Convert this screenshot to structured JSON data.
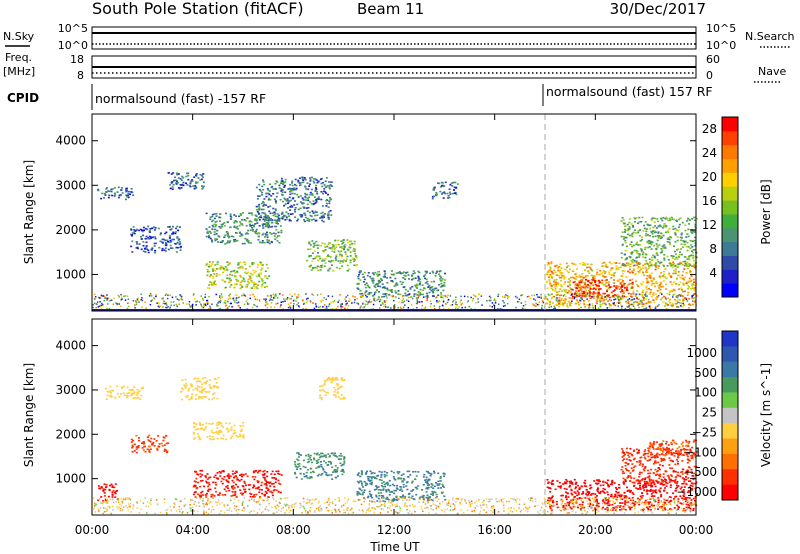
{
  "header": {
    "title": "South Pole Station (fitACF)",
    "beam": "Beam 11",
    "date": "30/Dec/2017"
  },
  "status_panels": {
    "nsky_label": "N.Sky",
    "nsearch_label": "N.Search",
    "freq_label_1": "Freq.",
    "freq_label_2": "[MHz]",
    "nave_label": "Nave",
    "cpid_label": "CPID",
    "noise_left_ticks": [
      "10^5",
      "10^0"
    ],
    "noise_right_ticks": [
      "10^5",
      "10^0"
    ],
    "freq_left_ticks": [
      "18",
      "8"
    ],
    "nave_right_ticks": [
      "60",
      "0"
    ],
    "cpid_segments": [
      {
        "label": "normalsound (fast) -157 RF",
        "start_hour": 0
      },
      {
        "label": "normalsound (fast) 157 RF",
        "start_hour": 18
      }
    ]
  },
  "chart_data": [
    {
      "type": "heatmap",
      "name": "Power",
      "title": "",
      "xlabel": "",
      "ylabel": "Slant Range [km]",
      "xlim": [
        0,
        24
      ],
      "ylim": [
        180,
        4600
      ],
      "x_ticks": [
        "00:00",
        "04:00",
        "08:00",
        "12:00",
        "16:00",
        "20:00",
        "00:00"
      ],
      "y_ticks": [
        1000,
        2000,
        3000,
        4000
      ],
      "colorbar": {
        "label": "Power [dB]",
        "ticks": [
          4,
          8,
          12,
          16,
          20,
          24,
          28
        ],
        "range": [
          0,
          30
        ],
        "colors": [
          "#0000ff",
          "#2020c8",
          "#2c4ca8",
          "#3c7a96",
          "#4a9470",
          "#3fae3a",
          "#78c020",
          "#b8d010",
          "#ffd000",
          "#ffa000",
          "#ff7800",
          "#ff4000",
          "#ff0000"
        ]
      },
      "echo_regions": [
        {
          "t0": 0.2,
          "t1": 1.6,
          "r0": 2700,
          "r1": 3000,
          "value": 7
        },
        {
          "t0": 1.5,
          "t1": 3.5,
          "r0": 1500,
          "r1": 2100,
          "value": 6
        },
        {
          "t0": 3.0,
          "t1": 4.5,
          "r0": 2900,
          "r1": 3300,
          "value": 7
        },
        {
          "t0": 4.5,
          "t1": 7.5,
          "r0": 1700,
          "r1": 2400,
          "value": 10
        },
        {
          "t0": 4.5,
          "t1": 7.0,
          "r0": 700,
          "r1": 1300,
          "value": 17
        },
        {
          "t0": 6.5,
          "t1": 9.5,
          "r0": 2200,
          "r1": 3200,
          "value": 8
        },
        {
          "t0": 8.5,
          "t1": 10.5,
          "r0": 1100,
          "r1": 1800,
          "value": 14
        },
        {
          "t0": 10.5,
          "t1": 14.0,
          "r0": 500,
          "r1": 1100,
          "value": 10
        },
        {
          "t0": 13.5,
          "t1": 14.5,
          "r0": 2700,
          "r1": 3100,
          "value": 7
        },
        {
          "t0": 18.0,
          "t1": 24.0,
          "r0": 300,
          "r1": 1300,
          "value": 21
        },
        {
          "t0": 19.0,
          "t1": 21.5,
          "r0": 500,
          "r1": 900,
          "value": 28
        },
        {
          "t0": 21.0,
          "t1": 24.0,
          "r0": 1200,
          "r1": 2300,
          "value": 13
        }
      ]
    },
    {
      "type": "heatmap",
      "name": "Velocity",
      "title": "",
      "xlabel": "Time UT",
      "ylabel": "Slant Range [km]",
      "xlim": [
        0,
        24
      ],
      "ylim": [
        180,
        4600
      ],
      "x_ticks": [
        "00:00",
        "04:00",
        "08:00",
        "12:00",
        "16:00",
        "20:00",
        "00:00"
      ],
      "y_ticks": [
        1000,
        2000,
        3000,
        4000
      ],
      "colorbar": {
        "label": "Velocity [m s^-1]",
        "ticks": [
          "1000",
          "500",
          "100",
          "25",
          "−25",
          "−100",
          "−500",
          "−1000"
        ],
        "colors": [
          "#1f35c8",
          "#2e58b0",
          "#3a78a8",
          "#4a9a60",
          "#6ec848",
          "#c4c4c4",
          "#ffcf40",
          "#ffa010",
          "#ff7000",
          "#ff3000",
          "#ff0000"
        ]
      },
      "echo_regions": [
        {
          "t0": 0.2,
          "t1": 1.0,
          "r0": 500,
          "r1": 900,
          "value": -400
        },
        {
          "t0": 0.5,
          "t1": 2.0,
          "r0": 2800,
          "r1": 3100,
          "value": 0
        },
        {
          "t0": 1.5,
          "t1": 3.0,
          "r0": 1600,
          "r1": 2000,
          "value": -150
        },
        {
          "t0": 3.5,
          "t1": 5.0,
          "r0": 2800,
          "r1": 3300,
          "value": 0
        },
        {
          "t0": 4.0,
          "t1": 6.0,
          "r0": 1900,
          "r1": 2300,
          "value": 0
        },
        {
          "t0": 4.0,
          "t1": 7.5,
          "r0": 600,
          "r1": 1200,
          "value": -300
        },
        {
          "t0": 8.0,
          "t1": 10.0,
          "r0": 1000,
          "r1": 1600,
          "value": 200
        },
        {
          "t0": 9.0,
          "t1": 10.0,
          "r0": 2800,
          "r1": 3300,
          "value": 0
        },
        {
          "t0": 10.5,
          "t1": 14.0,
          "r0": 500,
          "r1": 1200,
          "value": 300
        },
        {
          "t0": 18.0,
          "t1": 24.0,
          "r0": 300,
          "r1": 1000,
          "value": -500
        },
        {
          "t0": 21.0,
          "t1": 24.0,
          "r0": 900,
          "r1": 1700,
          "value": -200
        },
        {
          "t0": 22.0,
          "t1": 24.0,
          "r0": 1500,
          "r1": 1900,
          "value": -120
        }
      ]
    }
  ]
}
